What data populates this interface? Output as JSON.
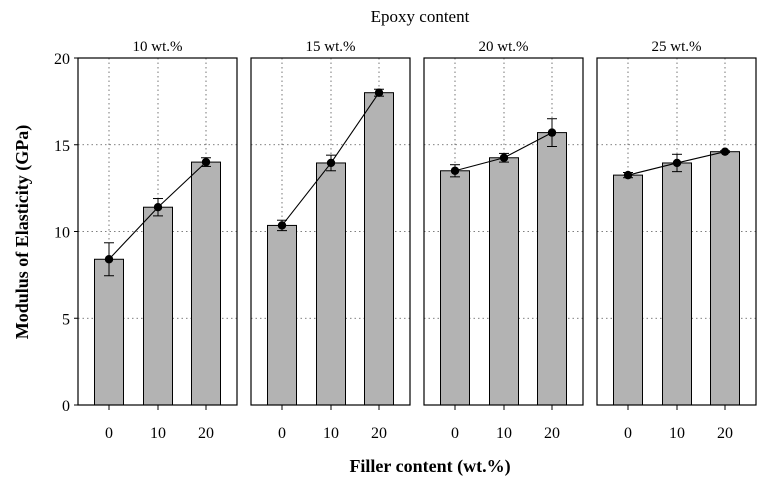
{
  "chart_data": {
    "type": "bar",
    "title": "Epoxy content",
    "xlabel": "Filler content (wt.%)",
    "ylabel": "Modulus of Elasticity (GPa)",
    "ylim": [
      0,
      20
    ],
    "yticks": [
      "0",
      "5",
      "10",
      "15",
      "20"
    ],
    "categories": [
      "0",
      "10",
      "20"
    ],
    "grid": "dotted",
    "bar_color": "#b3b3b3",
    "line_color": "#000000",
    "panels": [
      {
        "label": "10 wt.%",
        "values": [
          8.4,
          11.4,
          14.0
        ],
        "errors": [
          0.95,
          0.5,
          0.25
        ]
      },
      {
        "label": "15 wt.%",
        "values": [
          10.35,
          13.95,
          18.0
        ],
        "errors": [
          0.3,
          0.45,
          0.2
        ]
      },
      {
        "label": "20 wt.%",
        "values": [
          13.5,
          14.25,
          15.7
        ],
        "errors": [
          0.35,
          0.25,
          0.8
        ]
      },
      {
        "label": "25 wt.%",
        "values": [
          13.25,
          13.95,
          14.6
        ],
        "errors": [
          0.15,
          0.5,
          0.05
        ]
      }
    ]
  }
}
